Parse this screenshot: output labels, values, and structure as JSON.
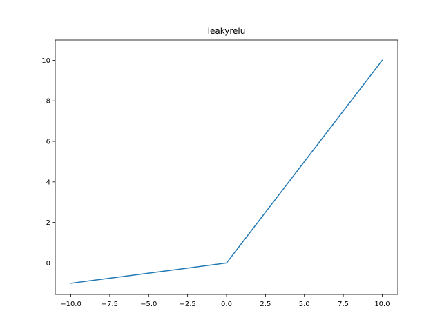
{
  "chart_data": {
    "type": "line",
    "title": "leakyrelu",
    "xlabel": "",
    "ylabel": "",
    "xlim": [
      -11,
      11
    ],
    "ylim": [
      -1.55,
      11.0
    ],
    "grid": false,
    "legend": "none",
    "x_ticks": [
      -10.0,
      -7.5,
      -5.0,
      -2.5,
      0.0,
      2.5,
      5.0,
      7.5,
      10.0
    ],
    "x_tick_labels": [
      "−10.0",
      "−7.5",
      "−5.0",
      "−2.5",
      "0.0",
      "2.5",
      "5.0",
      "7.5",
      "10.0"
    ],
    "y_ticks": [
      0,
      2,
      4,
      6,
      8,
      10
    ],
    "y_tick_labels": [
      "0",
      "2",
      "4",
      "6",
      "8",
      "10"
    ],
    "series": [
      {
        "color": "#1f77b4",
        "x": [
          -10,
          0,
          10
        ],
        "y": [
          -1,
          0,
          10
        ]
      }
    ]
  }
}
